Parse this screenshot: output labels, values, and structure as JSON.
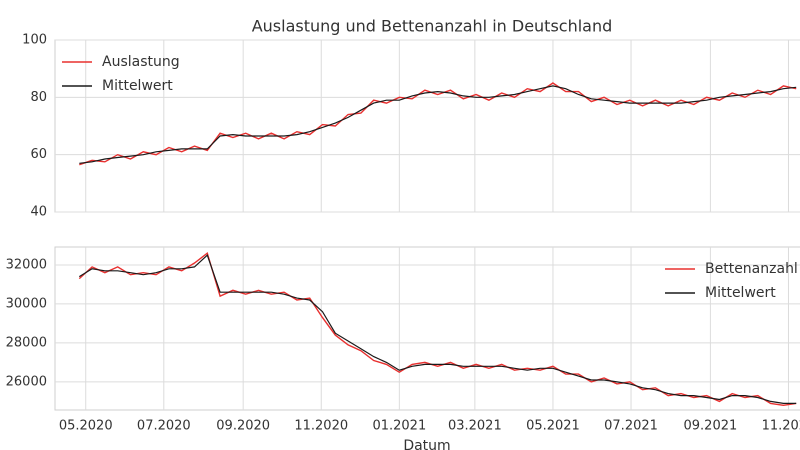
{
  "chart_data": [
    {
      "type": "line",
      "title": "Auslastung und Bettenanzahl in Deutschland",
      "x": [
        -5,
        5,
        15,
        25,
        35,
        45,
        55,
        65,
        75,
        85,
        95,
        105,
        115,
        125,
        135,
        145,
        155,
        165,
        175,
        185,
        195,
        205,
        215,
        225,
        235,
        245,
        255,
        265,
        275,
        285,
        295,
        305,
        315,
        325,
        335,
        345,
        355,
        365,
        375,
        385,
        395,
        405,
        415,
        425,
        435,
        445,
        455,
        465,
        475,
        485,
        495,
        505,
        515,
        525,
        535,
        545,
        555
      ],
      "series": [
        {
          "name": "Auslastung",
          "color": "#e8302f",
          "values": [
            56.5,
            58,
            57.5,
            60,
            58.5,
            61,
            60,
            62.5,
            61,
            63,
            61.5,
            67.5,
            66,
            67.5,
            65.5,
            67.5,
            65.5,
            68,
            67,
            70.5,
            70,
            74,
            74.5,
            79,
            78,
            80,
            79.5,
            82.5,
            81,
            82.5,
            79.5,
            81,
            79,
            81.5,
            80,
            83,
            82,
            85,
            82,
            82,
            78.5,
            80,
            77.5,
            79,
            77,
            79,
            77,
            79,
            77.5,
            80,
            79,
            81.5,
            80,
            82.5,
            81,
            84,
            83
          ]
        },
        {
          "name": "Mittelwert",
          "color": "#1a1a1a",
          "values": [
            57,
            57.5,
            58.5,
            59,
            59.5,
            60,
            61,
            61.5,
            62,
            62,
            62,
            66.5,
            67,
            66.5,
            66.5,
            66.5,
            66.5,
            67,
            68,
            69.5,
            71,
            73,
            75.5,
            78,
            79,
            79,
            80.5,
            81.5,
            82,
            81.5,
            80.5,
            80,
            80,
            80.5,
            81,
            82,
            83,
            84,
            83,
            81,
            79.5,
            79,
            78.5,
            78,
            78,
            78,
            78,
            78,
            78.5,
            79,
            80,
            80.5,
            81,
            81.5,
            82,
            83,
            83.5
          ]
        }
      ],
      "xlim": [
        -24,
        558
      ],
      "xticks": [
        0,
        61,
        123,
        184,
        245,
        304,
        365,
        426,
        488,
        549
      ],
      "ylim": [
        40,
        100
      ],
      "yticks": [
        40,
        60,
        80,
        100
      ],
      "grid": true,
      "legend": "upper left"
    },
    {
      "type": "line",
      "xlabel": "Datum",
      "x": [
        -5,
        5,
        15,
        25,
        35,
        45,
        55,
        65,
        75,
        85,
        95,
        105,
        115,
        125,
        135,
        145,
        155,
        165,
        175,
        185,
        195,
        205,
        215,
        225,
        235,
        245,
        255,
        265,
        275,
        285,
        295,
        305,
        315,
        325,
        335,
        345,
        355,
        365,
        375,
        385,
        395,
        405,
        415,
        425,
        435,
        445,
        455,
        465,
        475,
        485,
        495,
        505,
        515,
        525,
        535,
        545,
        555
      ],
      "series": [
        {
          "name": "Bettenanzahl",
          "color": "#e8302f",
          "values": [
            31300,
            31900,
            31600,
            31900,
            31500,
            31600,
            31500,
            31900,
            31700,
            32100,
            32600,
            30400,
            30700,
            30500,
            30700,
            30500,
            30600,
            30200,
            30300,
            29300,
            28400,
            27900,
            27600,
            27100,
            26900,
            26500,
            26900,
            27000,
            26800,
            27000,
            26700,
            26900,
            26700,
            26900,
            26600,
            26700,
            26600,
            26800,
            26400,
            26400,
            26000,
            26200,
            25900,
            26000,
            25600,
            25700,
            25300,
            25400,
            25200,
            25300,
            25000,
            25400,
            25200,
            25300,
            24900,
            24800,
            24900
          ]
        },
        {
          "name": "Mittelwert",
          "color": "#1a1a1a",
          "values": [
            31400,
            31800,
            31700,
            31700,
            31600,
            31500,
            31600,
            31800,
            31800,
            31900,
            32500,
            30600,
            30600,
            30600,
            30600,
            30600,
            30500,
            30300,
            30200,
            29600,
            28500,
            28100,
            27700,
            27300,
            27000,
            26600,
            26800,
            26900,
            26900,
            26900,
            26800,
            26800,
            26800,
            26800,
            26700,
            26600,
            26700,
            26700,
            26500,
            26300,
            26100,
            26100,
            26000,
            25900,
            25700,
            25600,
            25400,
            25300,
            25300,
            25200,
            25100,
            25300,
            25300,
            25200,
            25000,
            24900,
            24900
          ]
        }
      ],
      "xlim": [
        -24,
        558
      ],
      "xticks": [
        {
          "value": 0,
          "label": "05.2020"
        },
        {
          "value": 61,
          "label": "07.2020"
        },
        {
          "value": 123,
          "label": "09.2020"
        },
        {
          "value": 184,
          "label": "11.2020"
        },
        {
          "value": 245,
          "label": "01.2021"
        },
        {
          "value": 304,
          "label": "03.2021"
        },
        {
          "value": 365,
          "label": "05.2021"
        },
        {
          "value": 426,
          "label": "07.2021"
        },
        {
          "value": 488,
          "label": "09.2021"
        },
        {
          "value": 549,
          "label": "11.2021"
        }
      ],
      "ylim": [
        24560,
        32920
      ],
      "yticks": [
        26000,
        28000,
        30000,
        32000
      ],
      "grid": true,
      "legend": "upper right"
    }
  ]
}
